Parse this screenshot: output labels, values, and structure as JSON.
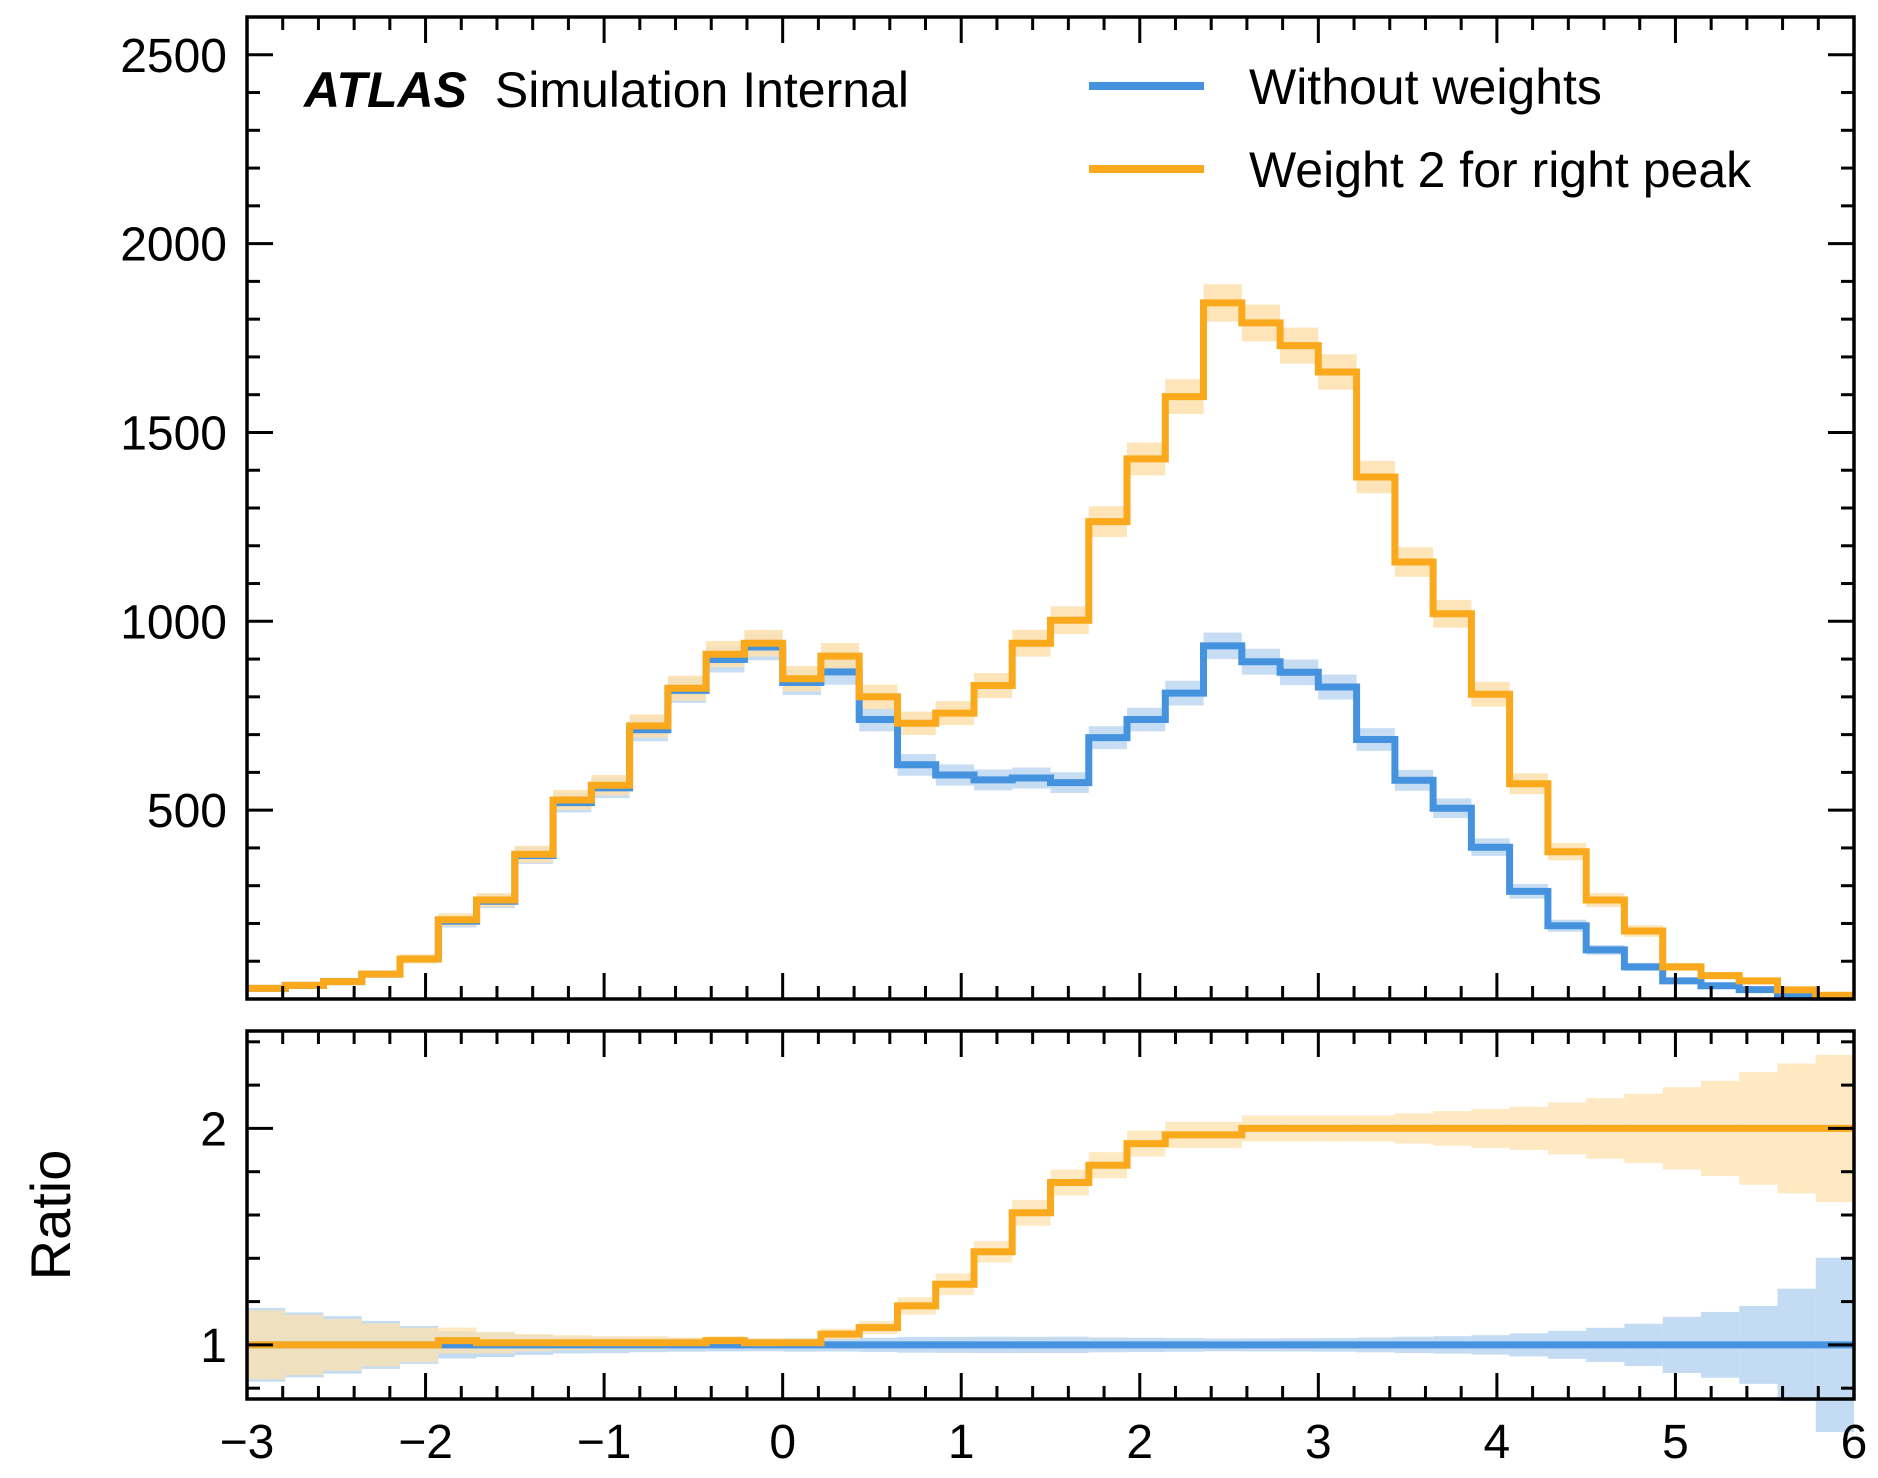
{
  "chart_data": {
    "type": "line",
    "step": true,
    "bin_edges": [
      -3,
      -2.7857,
      -2.5714,
      -2.3571,
      -2.1429,
      -1.9286,
      -1.7143,
      -1.5,
      -1.2857,
      -1.0714,
      -0.8571,
      -0.6429,
      -0.4286,
      -0.2143,
      0,
      0.2143,
      0.4286,
      0.6429,
      0.8571,
      1.0714,
      1.2857,
      1.5,
      1.7143,
      1.9286,
      2.1429,
      2.3571,
      2.5714,
      2.7857,
      3,
      3.2143,
      3.4286,
      3.6429,
      3.8571,
      4.0714,
      4.2857,
      4.5,
      4.7143,
      4.9286,
      5.1429,
      5.3571,
      5.5714,
      5.7857,
      6
    ],
    "series": [
      {
        "name": "Without weights",
        "color": "#4592de",
        "band_color": "#bdd7f2",
        "values": [
          28,
          36,
          46,
          66,
          106,
          206,
          259,
          380,
          520,
          559,
          713,
          817,
          899,
          932,
          838,
          866,
          740,
          620,
          593,
          580,
          585,
          573,
          692,
          740,
          810,
          935,
          893,
          865,
          826,
          687,
          579,
          505,
          402,
          285,
          194,
          130,
          85,
          48,
          35,
          25,
          12,
          5
        ],
        "ratio": [
          1,
          1,
          1,
          1,
          1,
          1,
          1,
          1,
          1,
          1,
          1,
          1,
          1,
          1,
          1,
          1,
          1,
          1,
          1,
          1,
          1,
          1,
          1,
          1,
          1,
          1,
          1,
          1,
          1,
          1,
          1,
          1,
          1,
          1,
          1,
          1,
          1,
          1,
          1,
          1,
          1,
          1
        ]
      },
      {
        "name": "Weight 2 for right peak",
        "color": "#f9a91b",
        "band_color": "#fde1ad",
        "values": [
          28,
          36,
          46,
          66,
          106,
          210,
          262,
          383,
          527,
          566,
          723,
          823,
          913,
          942,
          848,
          908,
          800,
          730,
          757,
          830,
          942,
          1003,
          1264,
          1430,
          1595,
          1843,
          1790,
          1730,
          1660,
          1382,
          1157,
          1020,
          807,
          570,
          390,
          262,
          180,
          85,
          62,
          48,
          24,
          10
        ],
        "ratio": [
          1,
          1,
          1,
          1,
          1,
          1.02,
          1.01,
          1.01,
          1.01,
          1.01,
          1.01,
          1.01,
          1.02,
          1.01,
          1.01,
          1.05,
          1.08,
          1.18,
          1.28,
          1.43,
          1.61,
          1.75,
          1.83,
          1.93,
          1.97,
          1.97,
          2.0,
          2.0,
          2.0,
          2.0,
          2.0,
          2.0,
          2.0,
          2.0,
          2.0,
          2.0,
          2.0,
          2.0,
          2.0,
          2.0,
          2.0,
          2.0
        ],
        "ratio_band": [
          0.16,
          0.14,
          0.12,
          0.1,
          0.08,
          0.06,
          0.05,
          0.04,
          0.035,
          0.03,
          0.03,
          0.025,
          0.02,
          0.02,
          0.02,
          0.025,
          0.03,
          0.04,
          0.05,
          0.05,
          0.06,
          0.06,
          0.06,
          0.06,
          0.06,
          0.06,
          0.06,
          0.06,
          0.06,
          0.06,
          0.07,
          0.08,
          0.09,
          0.1,
          0.12,
          0.14,
          0.16,
          0.19,
          0.22,
          0.26,
          0.3,
          0.34
        ]
      }
    ],
    "main_ylim": [
      0,
      2600
    ],
    "main_yticks": [
      500,
      1000,
      1500,
      2000,
      2500
    ],
    "ratio_ylim": [
      0.75,
      2.45
    ],
    "ratio_yticks": [
      1,
      2
    ],
    "xlim": [
      -3,
      6
    ],
    "xticks": [
      -3,
      -2,
      -1,
      0,
      1,
      2,
      3,
      4,
      5,
      6
    ],
    "xtick_labels": [
      "−3",
      "−2",
      "−1",
      "0",
      "1",
      "2",
      "3",
      "4",
      "5",
      "6"
    ],
    "ratio_ylabel": "Ratio",
    "legend_position": "top-right",
    "label_bold": "ATLAS",
    "label_rest": "Simulation Internal"
  }
}
